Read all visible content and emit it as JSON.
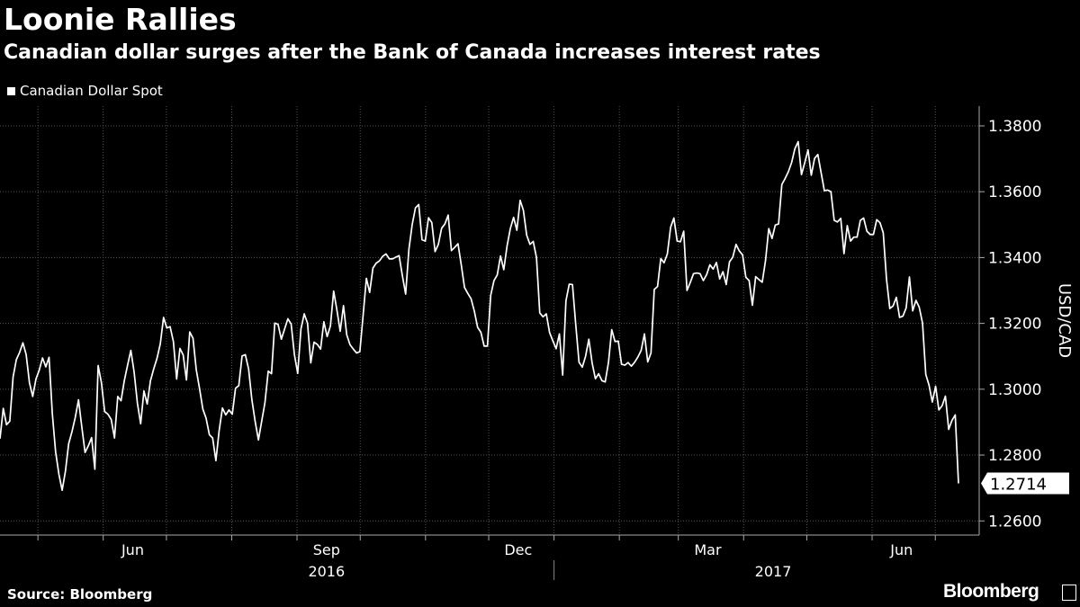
{
  "title": "Loonie Rallies",
  "subtitle": "Canadian dollar surges after the Bank of Canada increases interest rates",
  "source": "Source: Bloomberg",
  "brand": "Bloomberg",
  "colors": {
    "background": "#000000",
    "line": "#ffffff",
    "grid": "#555555"
  },
  "chart_data": {
    "type": "line",
    "series": [
      {
        "name": "Canadian Dollar Spot",
        "x_start": "2016-04-13",
        "x_end": "2017-07-12",
        "values": [
          1.285,
          1.2942,
          1.2892,
          1.2903,
          1.3037,
          1.309,
          1.3112,
          1.3141,
          1.3105,
          1.302,
          1.2978,
          1.3031,
          1.3058,
          1.3095,
          1.3068,
          1.3097,
          1.2925,
          1.281,
          1.2742,
          1.2693,
          1.2751,
          1.2835,
          1.2871,
          1.2914,
          1.2968,
          1.2886,
          1.2808,
          1.2828,
          1.2853,
          1.2757,
          1.3072,
          1.302,
          1.2932,
          1.2924,
          1.2908,
          1.2852,
          1.2978,
          1.2965,
          1.3026,
          1.3073,
          1.3118,
          1.3052,
          1.2958,
          1.2895,
          1.2995,
          1.2955,
          1.3026,
          1.3062,
          1.3094,
          1.3138,
          1.3218,
          1.3186,
          1.319,
          1.3145,
          1.3031,
          1.3124,
          1.3104,
          1.3028,
          1.3174,
          1.3155,
          1.3059,
          1.3002,
          1.294,
          1.2912,
          1.2862,
          1.2852,
          1.2783,
          1.2875,
          1.2943,
          1.2922,
          1.2937,
          1.2924,
          1.3003,
          1.3011,
          1.3101,
          1.3105,
          1.3061,
          1.2968,
          1.2902,
          1.2846,
          1.2903,
          1.296,
          1.3055,
          1.3047,
          1.3201,
          1.3197,
          1.3152,
          1.3183,
          1.3214,
          1.3198,
          1.3105,
          1.3048,
          1.3183,
          1.3229,
          1.3201,
          1.308,
          1.3143,
          1.3136,
          1.3122,
          1.3205,
          1.316,
          1.3192,
          1.3298,
          1.324,
          1.3176,
          1.3254,
          1.3165,
          1.3135,
          1.3122,
          1.311,
          1.3114,
          1.3224,
          1.3337,
          1.3294,
          1.3368,
          1.3383,
          1.339,
          1.3404,
          1.3411,
          1.3396,
          1.3396,
          1.3401,
          1.3406,
          1.3345,
          1.3289,
          1.3425,
          1.35,
          1.3551,
          1.3561,
          1.3454,
          1.345,
          1.3521,
          1.3506,
          1.3418,
          1.344,
          1.3489,
          1.3502,
          1.3529,
          1.3421,
          1.3431,
          1.3442,
          1.3378,
          1.3309,
          1.3291,
          1.3275,
          1.3237,
          1.3188,
          1.3173,
          1.3131,
          1.3131,
          1.3285,
          1.333,
          1.3347,
          1.3405,
          1.3363,
          1.3435,
          1.3488,
          1.3522,
          1.3483,
          1.3574,
          1.3543,
          1.3468,
          1.344,
          1.3449,
          1.34,
          1.3232,
          1.322,
          1.3229,
          1.3172,
          1.3147,
          1.3123,
          1.3168,
          1.3043,
          1.3268,
          1.3319,
          1.3318,
          1.3196,
          1.3082,
          1.3067,
          1.31,
          1.3152,
          1.308,
          1.3032,
          1.3047,
          1.3026,
          1.3022,
          1.3081,
          1.3181,
          1.3145,
          1.3146,
          1.3076,
          1.3073,
          1.3081,
          1.307,
          1.3082,
          1.3098,
          1.3118,
          1.3168,
          1.3083,
          1.311,
          1.3303,
          1.3312,
          1.3397,
          1.3384,
          1.3411,
          1.3492,
          1.352,
          1.345,
          1.3448,
          1.348,
          1.33,
          1.3324,
          1.3351,
          1.3353,
          1.3351,
          1.333,
          1.3348,
          1.3378,
          1.3365,
          1.3385,
          1.3335,
          1.3357,
          1.3318,
          1.3387,
          1.3401,
          1.344,
          1.342,
          1.3408,
          1.334,
          1.333,
          1.3255,
          1.3342,
          1.3333,
          1.3325,
          1.339,
          1.3488,
          1.3458,
          1.3499,
          1.3502,
          1.3622,
          1.364,
          1.3661,
          1.3689,
          1.3731,
          1.3752,
          1.3652,
          1.3688,
          1.3727,
          1.365,
          1.3701,
          1.3713,
          1.3658,
          1.3603,
          1.3605,
          1.36,
          1.3513,
          1.3508,
          1.3519,
          1.3412,
          1.3497,
          1.345,
          1.3462,
          1.3462,
          1.3513,
          1.352,
          1.348,
          1.347,
          1.347,
          1.3515,
          1.3506,
          1.3475,
          1.3334,
          1.3245,
          1.3253,
          1.3279,
          1.3218,
          1.3222,
          1.3247,
          1.3341,
          1.3238,
          1.327,
          1.3249,
          1.3201,
          1.3045,
          1.3012,
          1.2961,
          1.3009,
          1.2937,
          1.295,
          1.2979,
          1.2878,
          1.2905,
          1.2922,
          1.2714
        ]
      }
    ],
    "last_value_label": "1.2714",
    "y_ticks": [
      1.38,
      1.36,
      1.34,
      1.32,
      1.3,
      1.28,
      1.26
    ],
    "y_tick_labels": [
      "1.3800",
      "1.3600",
      "1.3400",
      "1.3200",
      "1.3000",
      "1.2800",
      "1.2600"
    ],
    "ylim": [
      1.2557,
      1.386
    ],
    "ylabel": "USD/CAD",
    "month_labels": [
      {
        "label": "Jun",
        "date": "2016-06-15"
      },
      {
        "label": "Sep",
        "date": "2016-09-15"
      },
      {
        "label": "Dec",
        "date": "2016-12-15"
      },
      {
        "label": "Mar",
        "date": "2017-03-15"
      },
      {
        "label": "Jun",
        "date": "2017-06-15"
      }
    ],
    "year_labels": [
      {
        "label": "2016",
        "date": "2016-09-15"
      },
      {
        "label": "2017",
        "date": "2017-04-15"
      }
    ],
    "year_boundary": "2017-01-01",
    "gridlines": [
      "2016-04-01",
      "2016-05-01",
      "2016-06-01",
      "2016-07-01",
      "2016-08-01",
      "2016-09-01",
      "2016-10-01",
      "2016-11-01",
      "2016-12-01",
      "2017-01-01",
      "2017-02-01",
      "2017-03-01",
      "2017-04-01",
      "2017-05-01",
      "2017-06-01",
      "2017-07-01"
    ],
    "grid": true,
    "legend_position": "top-left"
  }
}
